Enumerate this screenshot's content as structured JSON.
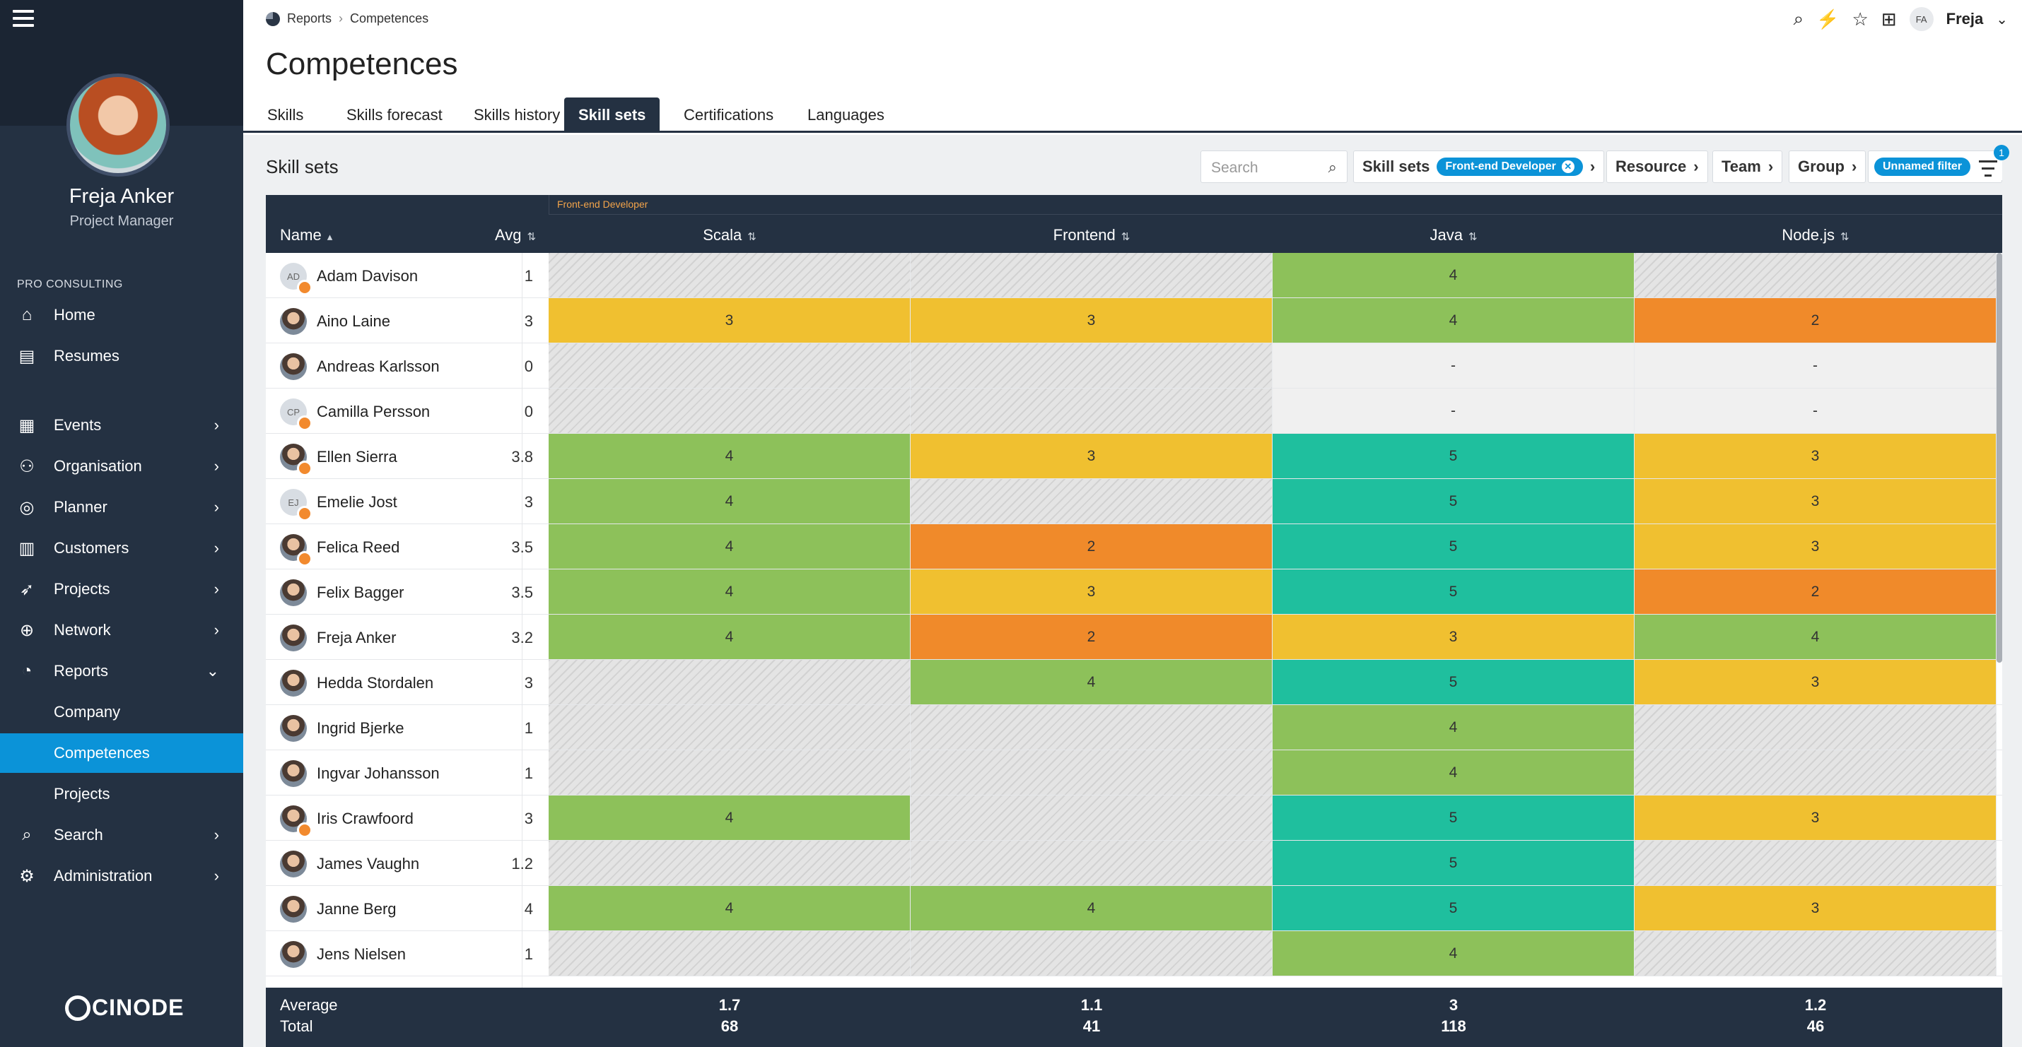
{
  "user": {
    "name": "Freja Anker",
    "role": "Project Manager",
    "initials": "FA",
    "short": "Freja"
  },
  "company": "PRO CONSULTING",
  "nav": [
    {
      "label": "Home",
      "icon": "home-icon",
      "chev": ""
    },
    {
      "label": "Resumes",
      "icon": "resume-icon",
      "chev": ""
    },
    {
      "label": "Events",
      "icon": "calendar-icon",
      "chev": "›"
    },
    {
      "label": "Organisation",
      "icon": "people-icon",
      "chev": "›"
    },
    {
      "label": "Planner",
      "icon": "planner-icon",
      "chev": "›"
    },
    {
      "label": "Customers",
      "icon": "building-icon",
      "chev": "›"
    },
    {
      "label": "Projects",
      "icon": "rocket-icon",
      "chev": "›"
    },
    {
      "label": "Network",
      "icon": "globe-icon",
      "chev": "›"
    },
    {
      "label": "Reports",
      "icon": "pie-chart-icon",
      "chev": "⌄"
    },
    {
      "label": "Company",
      "icon": "",
      "chev": ""
    },
    {
      "label": "Competences",
      "icon": "",
      "chev": ""
    },
    {
      "label": "Projects",
      "icon": "",
      "chev": ""
    },
    {
      "label": "Search",
      "icon": "search-icon",
      "chev": "›"
    },
    {
      "label": "Administration",
      "icon": "gear-icon",
      "chev": "›"
    }
  ],
  "logo": "CINODE",
  "breadcrumb": {
    "root": "Reports",
    "sep": "›",
    "current": "Competences"
  },
  "page_title": "Competences",
  "tabs": [
    "Skills",
    "Skills forecast",
    "Skills history",
    "Skill sets",
    "Certifications",
    "Languages"
  ],
  "panel_title": "Skill sets",
  "search_placeholder": "Search",
  "filters": {
    "skillsets": "Skill sets",
    "skillset_value": "Front-end Developer",
    "resource": "Resource",
    "team": "Team",
    "group": "Group",
    "unnamed": "Unnamed filter",
    "badge": "1"
  },
  "table": {
    "group_label": "Front-end Developer",
    "col_name": "Name",
    "col_avg": "Avg",
    "skills": [
      "Scala",
      "Frontend",
      "Java",
      "Node.js"
    ],
    "rows": [
      {
        "name": "Adam Davison",
        "initials": "AD",
        "photo": false,
        "dot": true,
        "avg": "1",
        "v": [
          "",
          "",
          "4",
          ""
        ]
      },
      {
        "name": "Aino Laine",
        "initials": "",
        "photo": true,
        "dot": false,
        "avg": "3",
        "v": [
          "3",
          "3",
          "4",
          "2"
        ]
      },
      {
        "name": "Andreas Karlsson",
        "initials": "",
        "photo": true,
        "dot": false,
        "avg": "0",
        "v": [
          "",
          "",
          "-",
          "-"
        ]
      },
      {
        "name": "Camilla Persson",
        "initials": "CP",
        "photo": false,
        "dot": true,
        "avg": "0",
        "v": [
          "",
          "",
          "-",
          "-"
        ]
      },
      {
        "name": "Ellen Sierra",
        "initials": "",
        "photo": true,
        "dot": true,
        "avg": "3.8",
        "v": [
          "4",
          "3",
          "5",
          "3"
        ]
      },
      {
        "name": "Emelie Jost",
        "initials": "EJ",
        "photo": false,
        "dot": true,
        "avg": "3",
        "v": [
          "4",
          "",
          "5",
          "3"
        ]
      },
      {
        "name": "Felica Reed",
        "initials": "",
        "photo": true,
        "dot": true,
        "avg": "3.5",
        "v": [
          "4",
          "2",
          "5",
          "3"
        ]
      },
      {
        "name": "Felix Bagger",
        "initials": "",
        "photo": true,
        "dot": false,
        "avg": "3.5",
        "v": [
          "4",
          "3",
          "5",
          "2"
        ]
      },
      {
        "name": "Freja Anker",
        "initials": "",
        "photo": true,
        "dot": false,
        "avg": "3.2",
        "v": [
          "4",
          "2",
          "3",
          "4"
        ]
      },
      {
        "name": "Hedda Stordalen",
        "initials": "",
        "photo": true,
        "dot": false,
        "avg": "3",
        "v": [
          "",
          "4",
          "5",
          "3"
        ]
      },
      {
        "name": "Ingrid Bjerke",
        "initials": "",
        "photo": true,
        "dot": false,
        "avg": "1",
        "v": [
          "",
          "",
          "4",
          ""
        ]
      },
      {
        "name": "Ingvar Johansson",
        "initials": "",
        "photo": true,
        "dot": false,
        "avg": "1",
        "v": [
          "",
          "",
          "4",
          ""
        ]
      },
      {
        "name": "Iris Crawfoord",
        "initials": "",
        "photo": true,
        "dot": true,
        "avg": "3",
        "v": [
          "4",
          "",
          "5",
          "3"
        ]
      },
      {
        "name": "James Vaughn",
        "initials": "",
        "photo": true,
        "dot": false,
        "avg": "1.2",
        "v": [
          "",
          "",
          "5",
          ""
        ]
      },
      {
        "name": "Janne Berg",
        "initials": "",
        "photo": true,
        "dot": false,
        "avg": "4",
        "v": [
          "4",
          "4",
          "5",
          "3"
        ]
      },
      {
        "name": "Jens Nielsen",
        "initials": "",
        "photo": true,
        "dot": false,
        "avg": "1",
        "v": [
          "",
          "",
          "4",
          ""
        ]
      }
    ],
    "footer": {
      "average_label": "Average",
      "total_label": "Total",
      "average": [
        "1.7",
        "1.1",
        "3",
        "1.2"
      ],
      "total": [
        "68",
        "41",
        "118",
        "46"
      ]
    }
  }
}
